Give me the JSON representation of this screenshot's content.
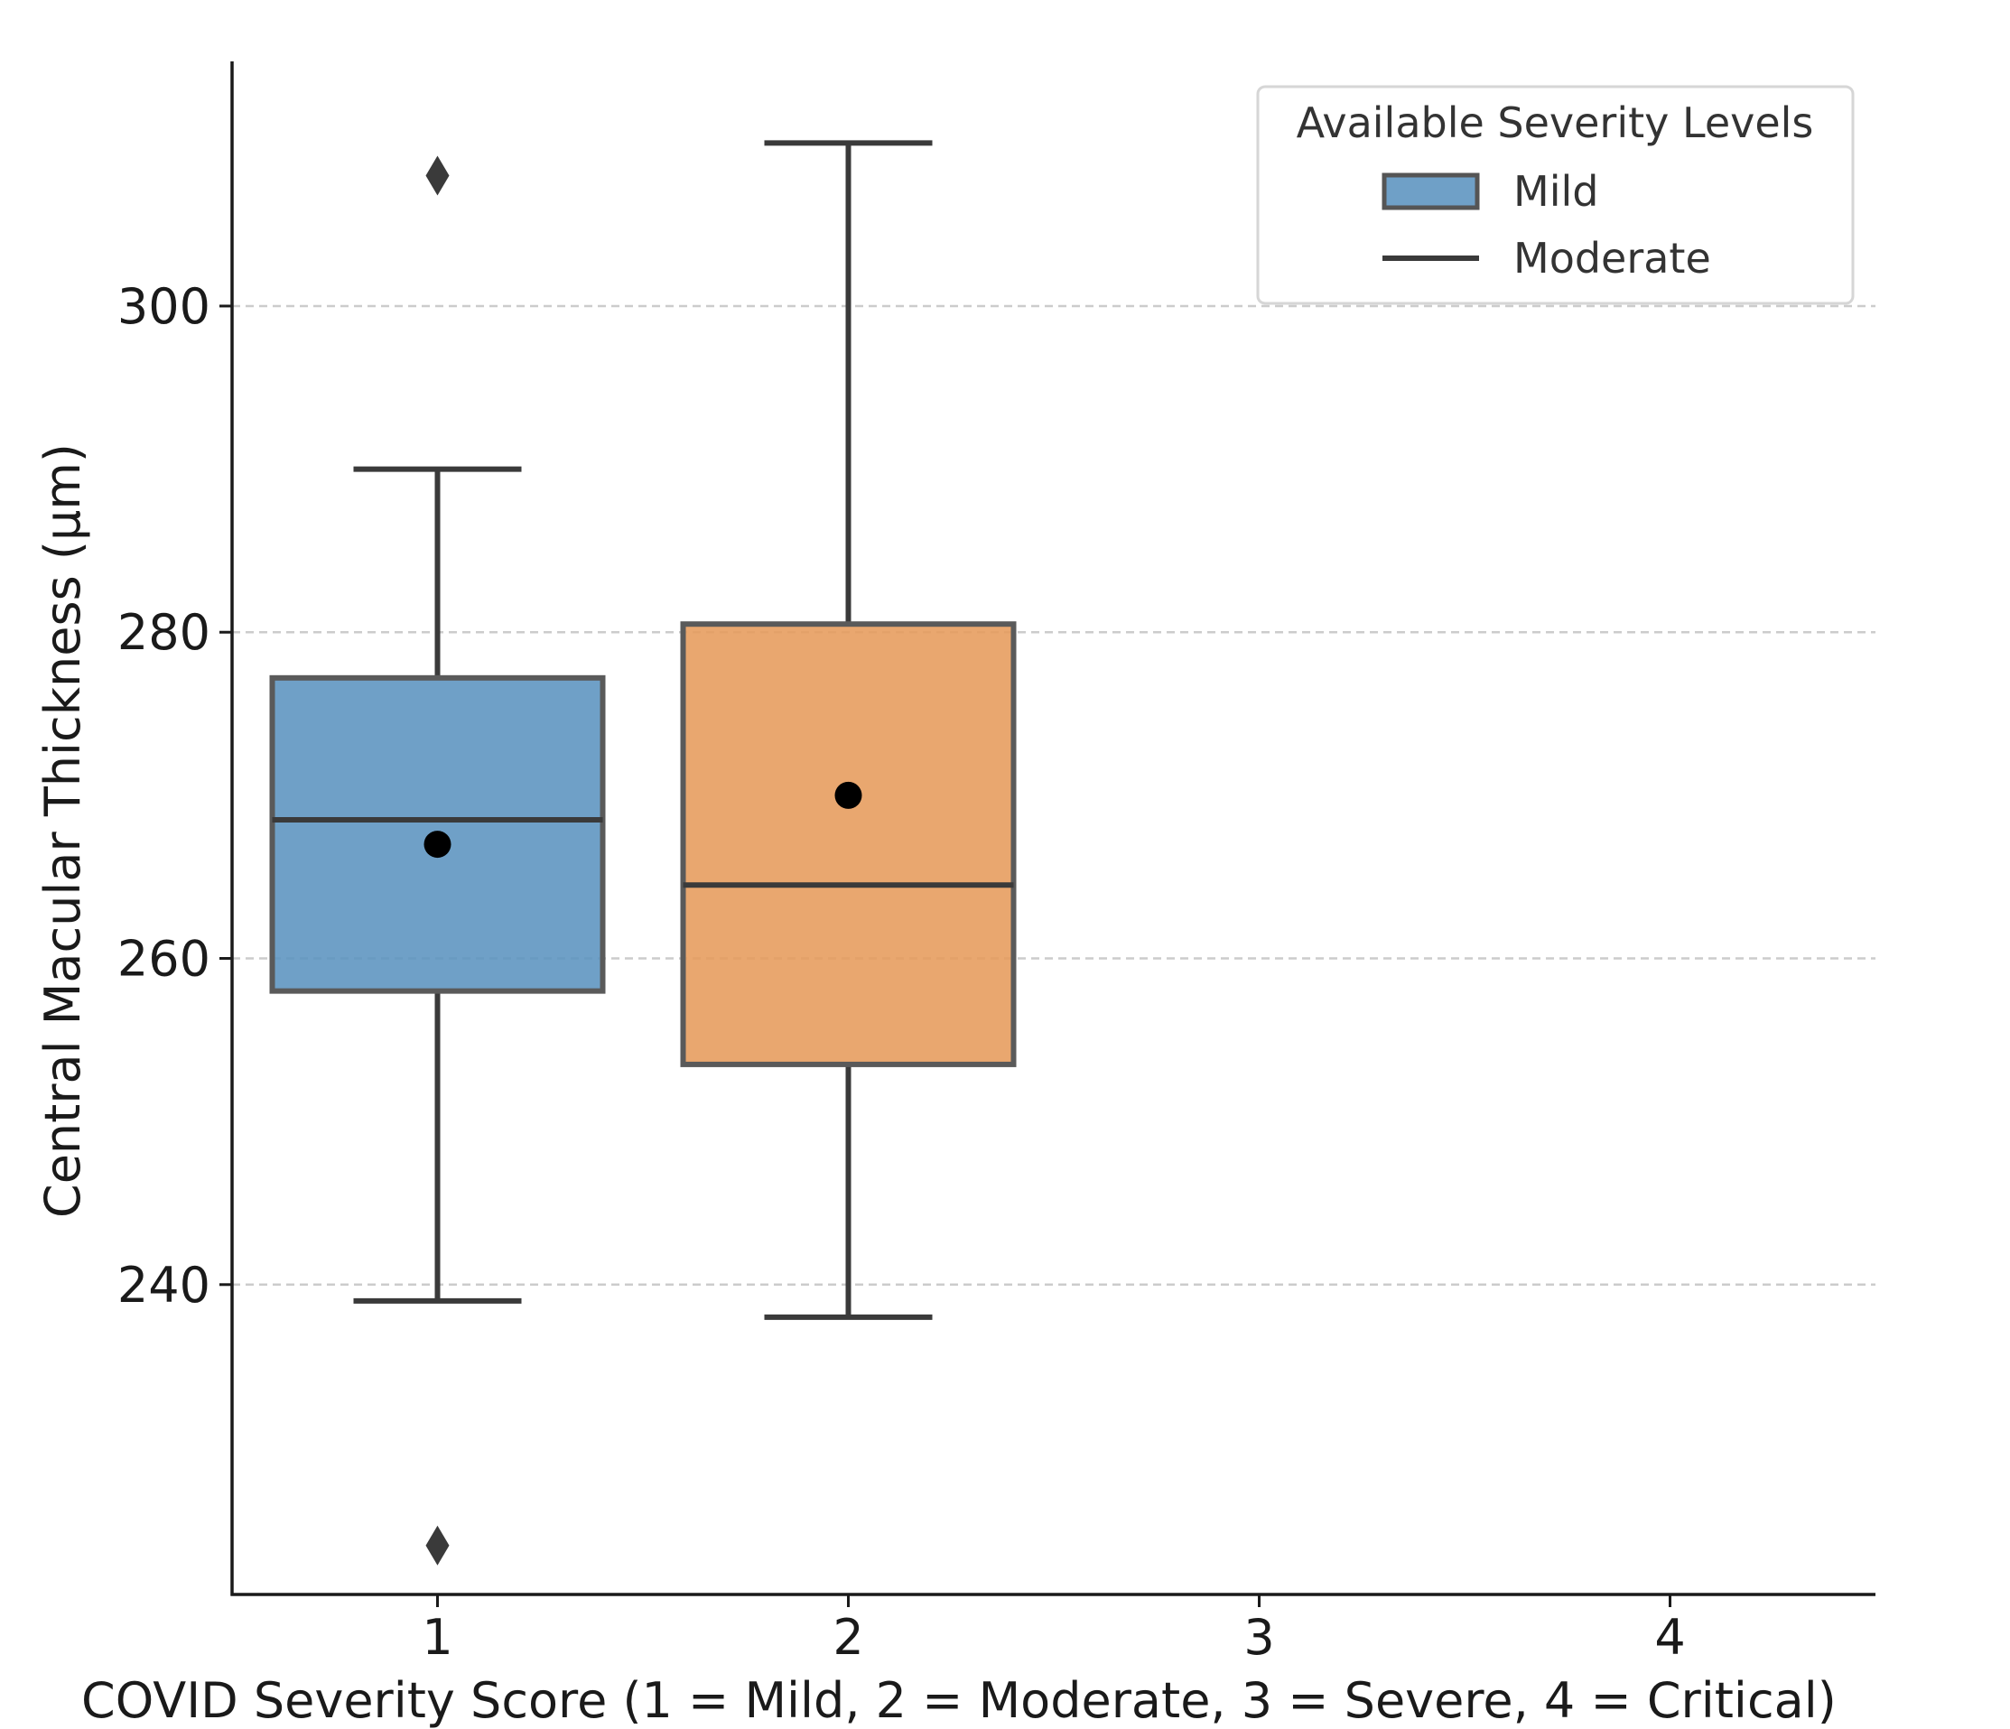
{
  "chart_data": {
    "type": "box",
    "xlabel": "COVID Severity Score (1 = Mild, 2 = Moderate, 3 = Severe, 4 = Critical)",
    "ylabel": "Central Macular Thickness (μm)",
    "x_ticks": [
      "1",
      "2",
      "3",
      "4"
    ],
    "xlim": [
      0.5,
      4.5
    ],
    "ylim": [
      221,
      315
    ],
    "y_ticks": [
      240,
      260,
      280,
      300
    ],
    "grid": "horizontal dashed",
    "legend": {
      "title": "Available Severity Levels",
      "placement": "top-right",
      "entries": [
        {
          "label": "Mild",
          "kind": "patch",
          "color": "#5b93bf"
        },
        {
          "label": "Moderate",
          "kind": "line",
          "color": "#3a3a3a"
        }
      ]
    },
    "series": [
      {
        "name": "Mild",
        "x": 1,
        "color": "#5b93bf",
        "whisker_low": 239,
        "q1": 258,
        "median": 268.5,
        "q3": 277.2,
        "whisker_high": 290,
        "mean": 267,
        "outliers": [
          308,
          224
        ]
      },
      {
        "name": "Moderate",
        "x": 2,
        "color": "#e69b5b",
        "whisker_low": 238,
        "q1": 253.5,
        "median": 264.5,
        "q3": 280.5,
        "whisker_high": 310,
        "mean": 270,
        "outliers": []
      }
    ]
  }
}
